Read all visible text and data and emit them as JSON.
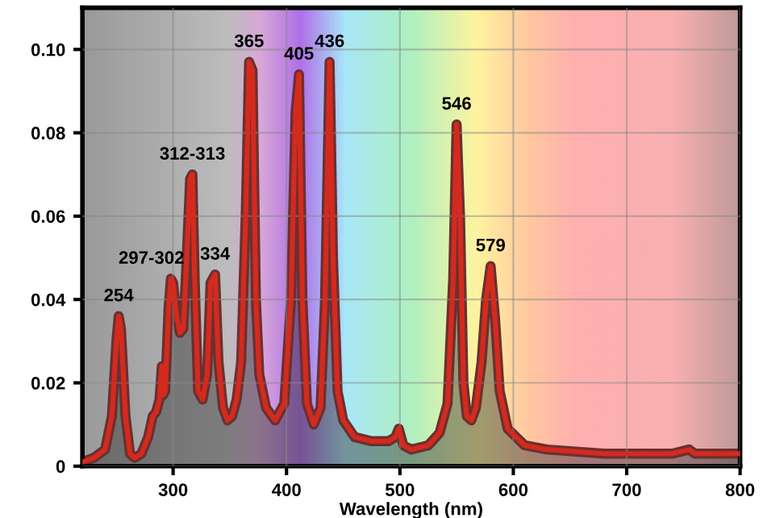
{
  "chart_data": {
    "type": "area",
    "xlabel": "Wavelength (nm)",
    "series": [
      {
        "color": "#d42a1e",
        "x": [
          220,
          230,
          240,
          246,
          250,
          252,
          254,
          258,
          262,
          266,
          272,
          278,
          282,
          285,
          288,
          290,
          291,
          293,
          296,
          298,
          300,
          303,
          306,
          309,
          312,
          315,
          317,
          319,
          322,
          326,
          330,
          333,
          337,
          340,
          344,
          348,
          352,
          356,
          360,
          364,
          367,
          370,
          373,
          376,
          382,
          390,
          398,
          404,
          408,
          411,
          414,
          418,
          424,
          430,
          434,
          438,
          441,
          445,
          450,
          460,
          475,
          490,
          496,
          499,
          503,
          510,
          525,
          535,
          542,
          547,
          550,
          553,
          556,
          559,
          563,
          567,
          572,
          576,
          580,
          584,
          588,
          595,
          610,
          630,
          680,
          740,
          755,
          760,
          770,
          800
        ],
        "values": [
          0.001,
          0.002,
          0.004,
          0.012,
          0.03,
          0.036,
          0.033,
          0.012,
          0.003,
          0.002,
          0.003,
          0.007,
          0.012,
          0.013,
          0.016,
          0.024,
          0.017,
          0.018,
          0.038,
          0.045,
          0.044,
          0.036,
          0.032,
          0.033,
          0.05,
          0.069,
          0.07,
          0.045,
          0.018,
          0.016,
          0.022,
          0.044,
          0.046,
          0.025,
          0.014,
          0.011,
          0.012,
          0.016,
          0.025,
          0.06,
          0.097,
          0.095,
          0.04,
          0.022,
          0.014,
          0.011,
          0.015,
          0.04,
          0.085,
          0.094,
          0.04,
          0.015,
          0.01,
          0.014,
          0.04,
          0.097,
          0.05,
          0.018,
          0.011,
          0.007,
          0.006,
          0.006,
          0.007,
          0.009,
          0.005,
          0.004,
          0.005,
          0.008,
          0.015,
          0.045,
          0.082,
          0.06,
          0.02,
          0.012,
          0.011,
          0.014,
          0.025,
          0.04,
          0.048,
          0.035,
          0.018,
          0.009,
          0.005,
          0.004,
          0.003,
          0.003,
          0.004,
          0.003,
          0.003,
          0.003
        ]
      }
    ],
    "xlim": [
      220,
      800
    ],
    "ylim": [
      0,
      0.11
    ],
    "xticks": [
      300,
      400,
      500,
      600,
      700,
      800
    ],
    "yticks": [
      {
        "value": 0,
        "label": "0"
      },
      0.02,
      0.04,
      0.06,
      0.08,
      {
        "value": 0.1,
        "label": "0.10"
      }
    ],
    "grid": true,
    "legend": false,
    "annotations": [
      {
        "text": "254",
        "x": 252,
        "y": 0.036
      },
      {
        "text": "297-302",
        "x": 298,
        "y": 0.045
      },
      {
        "text": "312-313",
        "x": 317,
        "y": 0.07
      },
      {
        "text": "334",
        "x": 337,
        "y": 0.046
      },
      {
        "text": "365",
        "x": 367,
        "y": 0.097
      },
      {
        "text": "405",
        "x": 411,
        "y": 0.094
      },
      {
        "text": "436",
        "x": 438,
        "y": 0.097
      },
      {
        "text": "546",
        "x": 550,
        "y": 0.082
      },
      {
        "text": "579",
        "x": 580,
        "y": 0.048
      }
    ]
  }
}
